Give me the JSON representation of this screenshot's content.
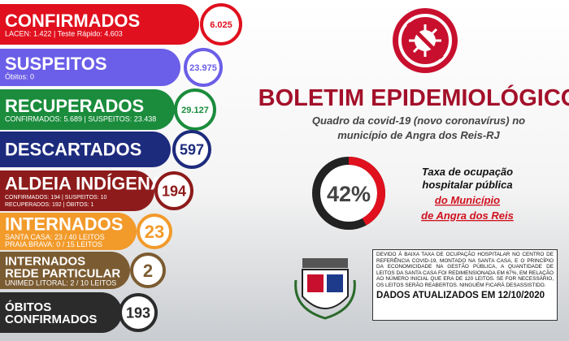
{
  "panels": [
    {
      "title": [
        "CONFIRMADOS"
      ],
      "lines": [
        "LACEN: 1.422 | Teste Rápido: 4.603"
      ],
      "total": "6.025"
    },
    {
      "title": [
        "SUSPEITOS"
      ],
      "lines": [
        "Óbitos: 0"
      ],
      "total": "23.975"
    },
    {
      "title": [
        "RECUPERADOS"
      ],
      "lines": [
        "CONFIRMADOS: 5.689 | SUSPEITOS: 23.438"
      ],
      "total": "29.127"
    },
    {
      "title": [
        "DESCARTADOS"
      ],
      "lines": [],
      "total": "597"
    },
    {
      "title": [
        "ALDEIA INDÍGENA"
      ],
      "lines": [
        "CONFIRMADOS: 194 | SUSPEITOS: 10",
        "RECUPERADOS: 192 | ÓBITOS: 1"
      ],
      "total": "194"
    },
    {
      "title": [
        "INTERNADOS"
      ],
      "lines": [
        "SANTA CASA: 23 / 40 LEITOS",
        "PRAIA BRAVA: 0 / 15 LEITOS"
      ],
      "total": "23"
    },
    {
      "title": [
        "INTERNADOS",
        "REDE PARTICULAR"
      ],
      "lines": [
        "UNIMED LITORAL: 2 / 10 LEITOS"
      ],
      "total": "2"
    },
    {
      "title": [
        "ÓBITOS",
        "CONFIRMADOS"
      ],
      "lines": [],
      "total": "193"
    }
  ],
  "header": {
    "title": "BOLETIM EPIDEMIOLÓGICO",
    "subtitle": [
      "Quadro da covid-19 (novo coronavírus) no",
      "município de Angra dos Reis-RJ"
    ]
  },
  "occupancy": {
    "value": 42,
    "label": "42%",
    "caption": [
      "Taxa de ocupação",
      "hospitalar pública"
    ],
    "place": [
      "do Município",
      "de Angra dos Reis"
    ]
  },
  "notice": "DEVIDO À BAIXA TAXA DE OCUPAÇÃO HOSPITALAR NO CENTRO DE REFERÊNCIA COVID-19, MONTADO NA SANTA CASA, E O PRINCÍPIO DA ECONOMICIDADE NA GESTÃO PÚBLICA, A QUANTIDADE DE LEITOS DA SANTA CASA FOI REDIMENSIONADA EM 67%, EM RELAÇÃO AO NÚMERO INICIAL QUE ERA DE 120 LEITOS. SE FOR NECESSÁRIO, OS LEITOS SERÃO REABERTOS. NINGUÉM FICARÁ DESASSISTIDO.",
  "updated": "DADOS ATUALIZADOS EM 12/10/2020"
}
